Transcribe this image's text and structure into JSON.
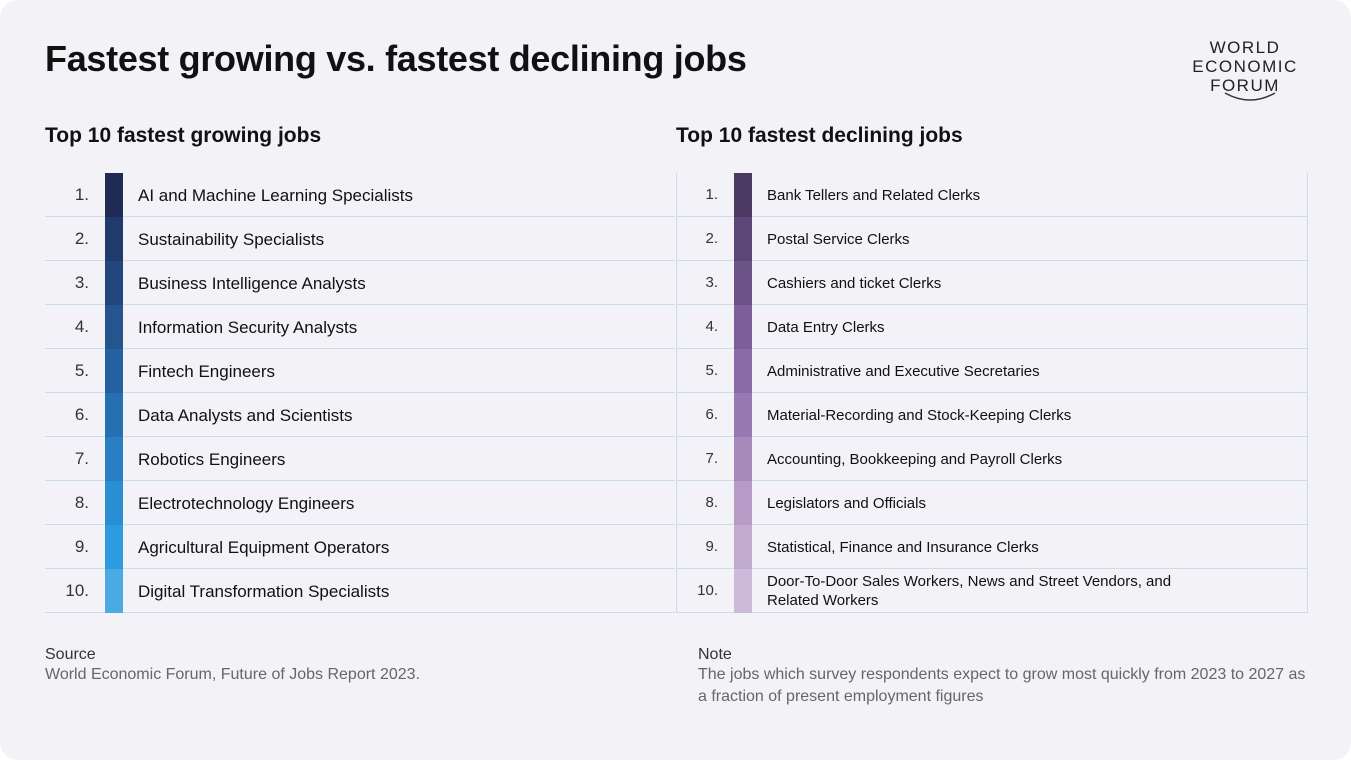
{
  "title": "Fastest growing vs. fastest declining jobs",
  "logo": [
    "WORLD",
    "ECONOMIC",
    "FORUM"
  ],
  "growing": {
    "heading": "Top 10 fastest growing jobs",
    "rows": [
      {
        "rank": "1.",
        "job": "AI and Machine Learning Specialists"
      },
      {
        "rank": "2.",
        "job": "Sustainability Specialists"
      },
      {
        "rank": "3.",
        "job": "Business Intelligence Analysts"
      },
      {
        "rank": "4.",
        "job": "Information Security Analysts"
      },
      {
        "rank": "5.",
        "job": "Fintech Engineers"
      },
      {
        "rank": "6.",
        "job": "Data Analysts and Scientists"
      },
      {
        "rank": "7.",
        "job": "Robotics Engineers"
      },
      {
        "rank": "8.",
        "job": "Electrotechnology Engineers"
      },
      {
        "rank": "9.",
        "job": "Agricultural Equipment Operators"
      },
      {
        "rank": "10.",
        "job": "Digital Transformation Specialists"
      }
    ]
  },
  "declining": {
    "heading": "Top 10 fastest declining jobs",
    "rows": [
      {
        "rank": "1.",
        "job": "Bank Tellers and Related Clerks"
      },
      {
        "rank": "2.",
        "job": "Postal Service Clerks"
      },
      {
        "rank": "3.",
        "job": "Cashiers and ticket Clerks"
      },
      {
        "rank": "4.",
        "job": "Data Entry Clerks"
      },
      {
        "rank": "5.",
        "job": "Administrative and Executive Secretaries"
      },
      {
        "rank": "6.",
        "job": "Material-Recording and Stock-Keeping Clerks"
      },
      {
        "rank": "7.",
        "job": "Accounting, Bookkeeping and Payroll Clerks"
      },
      {
        "rank": "8.",
        "job": "Legislators and Officials"
      },
      {
        "rank": "9.",
        "job": "Statistical, Finance and Insurance Clerks"
      },
      {
        "rank": "10.",
        "job": "Door-To-Door Sales Workers, News and Street Vendors, and Related Workers"
      }
    ]
  },
  "source": {
    "label": "Source",
    "text": "World Economic Forum, Future of Jobs Report 2023."
  },
  "note": {
    "label": "Note",
    "text": "The jobs which survey respondents expect to grow most quickly from 2023 to 2027 as a fraction of present employment figures"
  }
}
